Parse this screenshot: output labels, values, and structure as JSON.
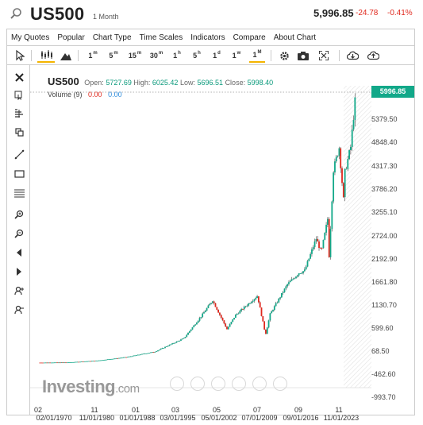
{
  "header": {
    "symbol": "US500",
    "timeframe": "1 Month",
    "price": "5,996.85",
    "change": "-24.78",
    "change_pct": "-0.41%"
  },
  "menu": [
    "My Quotes",
    "Popular",
    "Chart Type",
    "Time Scales",
    "Indicators",
    "Compare",
    "About Chart"
  ],
  "toolbar": {
    "intervals": [
      {
        "num": "1",
        "unit": "m"
      },
      {
        "num": "5",
        "unit": "m"
      },
      {
        "num": "15",
        "unit": "m"
      },
      {
        "num": "30",
        "unit": "m"
      },
      {
        "num": "1",
        "unit": "h"
      },
      {
        "num": "5",
        "unit": "h"
      },
      {
        "num": "1",
        "unit": "d"
      },
      {
        "num": "1",
        "unit": "w"
      },
      {
        "num": "1",
        "unit": "M"
      }
    ],
    "active_interval": "1M",
    "icons": [
      "cursor-icon",
      "candlestick-icon",
      "mountain-icon",
      "gear-icon",
      "camera-icon",
      "fullscreen-icon",
      "cloud-download-icon",
      "cloud-upload-icon"
    ]
  },
  "left_tools": [
    "close-icon",
    "magnet-cursor-icon",
    "pitchfork-icon",
    "clone-icon",
    "trend-line-icon",
    "rectangle-icon",
    "fibonacci-icon",
    "zoom-in-icon",
    "zoom-out-icon",
    "hide-icon",
    "show-icon",
    "add-alert-icon",
    "remove-icon"
  ],
  "legend": {
    "title": "US500",
    "open_label": "Open:",
    "open": "5727.69",
    "high_label": "High:",
    "high": "6025.42",
    "low_label": "Low:",
    "low": "5696.51",
    "close_label": "Close:",
    "close": "5998.40",
    "volume_label": "Volume (9)",
    "vol_a": "0.00",
    "vol_b": "0.00"
  },
  "price_tag": "5996.85",
  "logo": {
    "main": "Investing",
    "suffix": ".com"
  },
  "colors": {
    "up": "#12a889",
    "down": "#e0281d",
    "accent": "#f4b400"
  },
  "chart_data": {
    "type": "line",
    "title": "US500",
    "interval": "1 Month",
    "y_ticks": [
      "5379.50",
      "4848.40",
      "4317.30",
      "3786.20",
      "3255.10",
      "2724.00",
      "2192.90",
      "1661.80",
      "1130.70",
      "599.60",
      "68.50",
      "-462.60",
      "-993.70"
    ],
    "x_ticks_top": [
      "02",
      "11",
      "01",
      "03",
      "05",
      "07",
      "09",
      "11"
    ],
    "x_ticks_bottom": [
      "02/01/1970",
      "11/01/1980",
      "01/01/1988",
      "03/01/1995",
      "05/01/2002",
      "07/01/2009",
      "09/01/2016",
      "11/01/2023"
    ],
    "ylim": [
      -993.7,
      5996.85
    ],
    "series": [
      {
        "x": [
          1970,
          1975,
          1980,
          1985,
          1990,
          1995,
          1998,
          2000,
          2002.5,
          2004,
          2007.8,
          2009.2,
          2010,
          2013,
          2015,
          2016,
          2018,
          2018.9,
          2020,
          2020.2,
          2021,
          2022,
          2022.8,
          2023,
          2024,
          2024.9
        ],
        "y": [
          90,
          95,
          135,
          210,
          330,
          620,
          1100,
          1450,
          820,
          1130,
          1550,
          700,
          1150,
          1800,
          2050,
          2100,
          2800,
          2500,
          3230,
          2300,
          4300,
          4790,
          3580,
          4250,
          4800,
          5996
        ]
      }
    ]
  }
}
